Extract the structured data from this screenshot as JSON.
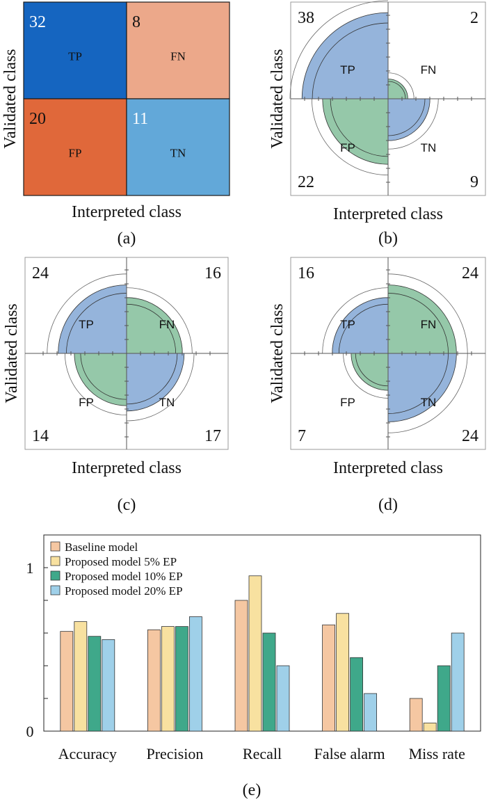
{
  "panel_labels": {
    "a": "(a)",
    "b": "(b)",
    "c": "(c)",
    "d": "(d)",
    "e": "(e)"
  },
  "axis_labels": {
    "x": "Interpreted class",
    "y": "Validated class"
  },
  "colors": {
    "tp_dark": "#1565c0",
    "fn_light": "#eca88a",
    "fp_dark": "#e0683a",
    "tn_light": "#62a8d9",
    "petal_blue": "#95b4db",
    "petal_green": "#95c8a9",
    "bar_baseline": "#f5c7a2",
    "bar_ep5": "#f8e1a0",
    "bar_ep10": "#3fa88a",
    "bar_ep20": "#9fd0e9"
  },
  "chart_data": [
    {
      "type": "heatmap",
      "panel": "(a)",
      "xlabel": "Interpreted class",
      "ylabel": "Validated class",
      "cells": [
        {
          "label": "TP",
          "value": 32
        },
        {
          "label": "FN",
          "value": 8
        },
        {
          "label": "FP",
          "value": 20
        },
        {
          "label": "TN",
          "value": 11
        }
      ]
    },
    {
      "type": "pie",
      "style": "fourfold",
      "panel": "(b)",
      "xlabel": "Interpreted class",
      "ylabel": "Validated class",
      "cells": [
        {
          "label": "TP",
          "value": 38
        },
        {
          "label": "FN",
          "value": 2
        },
        {
          "label": "FP",
          "value": 22
        },
        {
          "label": "TN",
          "value": 9
        }
      ]
    },
    {
      "type": "pie",
      "style": "fourfold",
      "panel": "(c)",
      "xlabel": "Interpreted class",
      "ylabel": "Validated class",
      "cells": [
        {
          "label": "TP",
          "value": 24
        },
        {
          "label": "FN",
          "value": 16
        },
        {
          "label": "FP",
          "value": 14
        },
        {
          "label": "TN",
          "value": 17
        }
      ]
    },
    {
      "type": "pie",
      "style": "fourfold",
      "panel": "(d)",
      "xlabel": "Interpreted class",
      "ylabel": "Validated class",
      "cells": [
        {
          "label": "TP",
          "value": 16
        },
        {
          "label": "FN",
          "value": 24
        },
        {
          "label": "FP",
          "value": 7
        },
        {
          "label": "TN",
          "value": 24
        }
      ]
    },
    {
      "type": "bar",
      "panel": "(e)",
      "categories": [
        "Accuracy",
        "Precision",
        "Recall",
        "False alarm",
        "Miss rate"
      ],
      "series": [
        {
          "name": "Baseline model",
          "values": [
            0.61,
            0.62,
            0.8,
            0.65,
            0.2
          ]
        },
        {
          "name": "Proposed model 5% EP",
          "values": [
            0.67,
            0.64,
            0.95,
            0.72,
            0.05
          ]
        },
        {
          "name": "Proposed model 10% EP",
          "values": [
            0.58,
            0.64,
            0.6,
            0.45,
            0.4
          ]
        },
        {
          "name": "Proposed model 20% EP",
          "values": [
            0.56,
            0.7,
            0.4,
            0.23,
            0.6
          ]
        }
      ],
      "ylim": [
        0,
        1.2
      ],
      "yticks": [
        0,
        0.2,
        0.4,
        0.6,
        0.8,
        1
      ],
      "ytick_labels": [
        "0",
        "",
        "",
        "",
        "",
        "1"
      ],
      "legend_position": "top-left"
    }
  ]
}
